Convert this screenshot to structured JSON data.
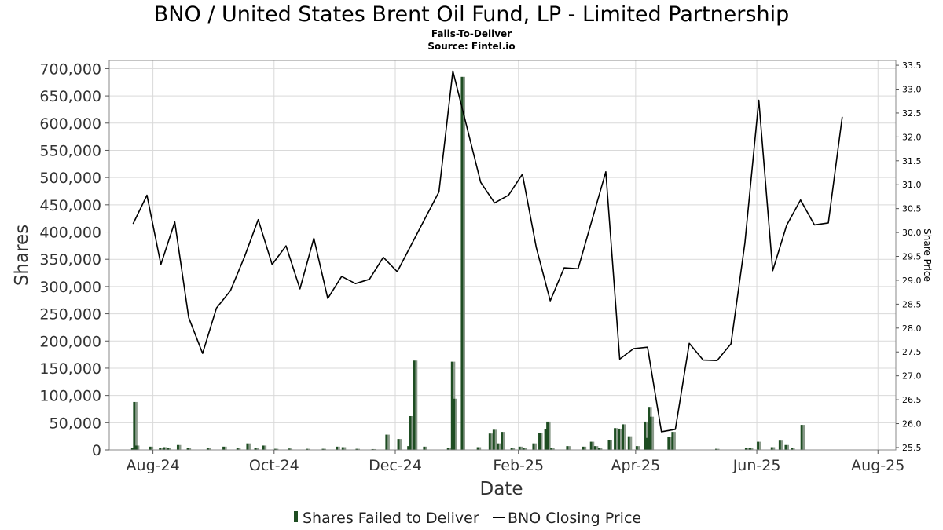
{
  "title": "BNO / United States Brent Oil Fund, LP - Limited Partnership",
  "subtitle": "Fails-To-Deliver",
  "source": "Source: Fintel.io",
  "colors": {
    "bar": "#1e4d22",
    "bar_shade": "#8a9a8a",
    "line": "#000000",
    "grid": "#d9d9d9"
  },
  "chart_data": {
    "type": "bar+line",
    "xlabel": "Date",
    "ylabel": "Shares",
    "y2label": "Share Price",
    "x_ticks": [
      {
        "label": "Aug-24",
        "date": "2024-08-01"
      },
      {
        "label": "Oct-24",
        "date": "2024-10-01"
      },
      {
        "label": "Dec-24",
        "date": "2024-12-01"
      },
      {
        "label": "Feb-25",
        "date": "2025-02-01"
      },
      {
        "label": "Apr-25",
        "date": "2025-04-01"
      },
      {
        "label": "Jun-25",
        "date": "2025-06-01"
      },
      {
        "label": "Aug-25",
        "date": "2025-08-01"
      }
    ],
    "xlim": [
      "2024-07-10",
      "2025-08-10"
    ],
    "ylim": [
      0,
      715000
    ],
    "y_ticks": [
      {
        "value": 0,
        "label": "0"
      },
      {
        "value": 50000,
        "label": "50,000"
      },
      {
        "value": 100000,
        "label": "100,000"
      },
      {
        "value": 150000,
        "label": "150,000"
      },
      {
        "value": 200000,
        "label": "200,000"
      },
      {
        "value": 250000,
        "label": "250,000"
      },
      {
        "value": 300000,
        "label": "300,000"
      },
      {
        "value": 350000,
        "label": "350,000"
      },
      {
        "value": 400000,
        "label": "400,000"
      },
      {
        "value": 450000,
        "label": "450,000"
      },
      {
        "value": 500000,
        "label": "500,000"
      },
      {
        "value": 550000,
        "label": "550,000"
      },
      {
        "value": 600000,
        "label": "600,000"
      },
      {
        "value": 650000,
        "label": "650,000"
      },
      {
        "value": 700000,
        "label": "700,000"
      }
    ],
    "y2lim": [
      25.45,
      33.6
    ],
    "y2_ticks": [
      {
        "value": 25.5,
        "label": "25.5"
      },
      {
        "value": 26.0,
        "label": "26.0"
      },
      {
        "value": 26.5,
        "label": "26.5"
      },
      {
        "value": 27.0,
        "label": "27.0"
      },
      {
        "value": 27.5,
        "label": "27.5"
      },
      {
        "value": 28.0,
        "label": "28.0"
      },
      {
        "value": 28.5,
        "label": "28.5"
      },
      {
        "value": 29.0,
        "label": "29.0"
      },
      {
        "value": 29.5,
        "label": "29.5"
      },
      {
        "value": 30.0,
        "label": "30.0"
      },
      {
        "value": 30.5,
        "label": "30.5"
      },
      {
        "value": 31.0,
        "label": "31.0"
      },
      {
        "value": 31.5,
        "label": "31.5"
      },
      {
        "value": 32.0,
        "label": "32.0"
      },
      {
        "value": 32.5,
        "label": "32.5"
      },
      {
        "value": 33.0,
        "label": "33.0"
      },
      {
        "value": 33.5,
        "label": "33.5"
      }
    ],
    "series": [
      {
        "name": "Shares Failed to Deliver",
        "type": "bar",
        "points": [
          {
            "date": "2024-07-22",
            "value": 3000
          },
          {
            "date": "2024-07-23",
            "value": 88000
          },
          {
            "date": "2024-07-24",
            "value": 8000
          },
          {
            "date": "2024-07-31",
            "value": 6000
          },
          {
            "date": "2024-08-05",
            "value": 4000
          },
          {
            "date": "2024-08-07",
            "value": 5000
          },
          {
            "date": "2024-08-09",
            "value": 3000
          },
          {
            "date": "2024-08-14",
            "value": 9000
          },
          {
            "date": "2024-08-19",
            "value": 4000
          },
          {
            "date": "2024-08-29",
            "value": 3000
          },
          {
            "date": "2024-09-06",
            "value": 6000
          },
          {
            "date": "2024-09-13",
            "value": 3000
          },
          {
            "date": "2024-09-18",
            "value": 12000
          },
          {
            "date": "2024-09-22",
            "value": 4000
          },
          {
            "date": "2024-09-26",
            "value": 8000
          },
          {
            "date": "2024-10-02",
            "value": 2000
          },
          {
            "date": "2024-10-09",
            "value": 2500
          },
          {
            "date": "2024-10-18",
            "value": 2000
          },
          {
            "date": "2024-10-26",
            "value": 2000
          },
          {
            "date": "2024-11-02",
            "value": 6000
          },
          {
            "date": "2024-11-05",
            "value": 5000
          },
          {
            "date": "2024-11-12",
            "value": 2000
          },
          {
            "date": "2024-11-20",
            "value": 1500
          },
          {
            "date": "2024-11-27",
            "value": 28000
          },
          {
            "date": "2024-12-03",
            "value": 20000
          },
          {
            "date": "2024-12-08",
            "value": 7000
          },
          {
            "date": "2024-12-09",
            "value": 62000
          },
          {
            "date": "2024-12-11",
            "value": 164000
          },
          {
            "date": "2024-12-16",
            "value": 6000
          },
          {
            "date": "2024-12-28",
            "value": 4000
          },
          {
            "date": "2024-12-30",
            "value": 162000
          },
          {
            "date": "2024-12-31",
            "value": 94000
          },
          {
            "date": "2025-01-04",
            "value": 685000
          },
          {
            "date": "2025-01-12",
            "value": 5000
          },
          {
            "date": "2025-01-18",
            "value": 30000
          },
          {
            "date": "2025-01-20",
            "value": 37000
          },
          {
            "date": "2025-01-22",
            "value": 12000
          },
          {
            "date": "2025-01-24",
            "value": 33000
          },
          {
            "date": "2025-01-29",
            "value": 3000
          },
          {
            "date": "2025-02-02",
            "value": 6000
          },
          {
            "date": "2025-02-04",
            "value": 4000
          },
          {
            "date": "2025-02-09",
            "value": 12000
          },
          {
            "date": "2025-02-12",
            "value": 31000
          },
          {
            "date": "2025-02-15",
            "value": 38000
          },
          {
            "date": "2025-02-16",
            "value": 52000
          },
          {
            "date": "2025-02-18",
            "value": 4000
          },
          {
            "date": "2025-02-26",
            "value": 7000
          },
          {
            "date": "2025-03-06",
            "value": 6000
          },
          {
            "date": "2025-03-10",
            "value": 15000
          },
          {
            "date": "2025-03-12",
            "value": 7000
          },
          {
            "date": "2025-03-14",
            "value": 3000
          },
          {
            "date": "2025-03-19",
            "value": 18000
          },
          {
            "date": "2025-03-22",
            "value": 40000
          },
          {
            "date": "2025-03-24",
            "value": 39000
          },
          {
            "date": "2025-03-26",
            "value": 47000
          },
          {
            "date": "2025-03-29",
            "value": 25000
          },
          {
            "date": "2025-04-02",
            "value": 7000
          },
          {
            "date": "2025-04-06",
            "value": 52000
          },
          {
            "date": "2025-04-07",
            "value": 22000
          },
          {
            "date": "2025-04-08",
            "value": 79000
          },
          {
            "date": "2025-04-09",
            "value": 61000
          },
          {
            "date": "2025-04-18",
            "value": 24000
          },
          {
            "date": "2025-04-20",
            "value": 33000
          },
          {
            "date": "2025-05-12",
            "value": 2000
          },
          {
            "date": "2025-05-27",
            "value": 3000
          },
          {
            "date": "2025-05-29",
            "value": 4000
          },
          {
            "date": "2025-06-02",
            "value": 15000
          },
          {
            "date": "2025-06-09",
            "value": 5000
          },
          {
            "date": "2025-06-13",
            "value": 17000
          },
          {
            "date": "2025-06-16",
            "value": 9000
          },
          {
            "date": "2025-06-19",
            "value": 4000
          },
          {
            "date": "2025-06-24",
            "value": 46000
          }
        ]
      },
      {
        "name": "BNO Closing Price",
        "type": "line",
        "axis": "right",
        "points": [
          {
            "date": "2024-07-22",
            "value": 30.18
          },
          {
            "date": "2024-07-29",
            "value": 30.78
          },
          {
            "date": "2024-08-05",
            "value": 29.33
          },
          {
            "date": "2024-08-12",
            "value": 30.22
          },
          {
            "date": "2024-08-19",
            "value": 28.22
          },
          {
            "date": "2024-08-26",
            "value": 27.47
          },
          {
            "date": "2024-09-02",
            "value": 28.42
          },
          {
            "date": "2024-09-09",
            "value": 28.78
          },
          {
            "date": "2024-09-16",
            "value": 29.48
          },
          {
            "date": "2024-09-23",
            "value": 30.27
          },
          {
            "date": "2024-09-30",
            "value": 29.33
          },
          {
            "date": "2024-10-07",
            "value": 29.72
          },
          {
            "date": "2024-10-14",
            "value": 28.82
          },
          {
            "date": "2024-10-21",
            "value": 29.88
          },
          {
            "date": "2024-10-28",
            "value": 28.62
          },
          {
            "date": "2024-11-04",
            "value": 29.08
          },
          {
            "date": "2024-11-11",
            "value": 28.93
          },
          {
            "date": "2024-11-18",
            "value": 29.02
          },
          {
            "date": "2024-11-25",
            "value": 29.48
          },
          {
            "date": "2024-12-02",
            "value": 29.18
          },
          {
            "date": "2024-12-23",
            "value": 30.85
          },
          {
            "date": "2024-12-30",
            "value": 33.38
          },
          {
            "date": "2025-01-13",
            "value": 31.05
          },
          {
            "date": "2025-01-20",
            "value": 30.62
          },
          {
            "date": "2025-01-27",
            "value": 30.78
          },
          {
            "date": "2025-02-03",
            "value": 31.22
          },
          {
            "date": "2025-02-10",
            "value": 29.68
          },
          {
            "date": "2025-02-17",
            "value": 28.57
          },
          {
            "date": "2025-02-24",
            "value": 29.26
          },
          {
            "date": "2025-03-03",
            "value": 29.24
          },
          {
            "date": "2025-03-17",
            "value": 31.27
          },
          {
            "date": "2025-03-24",
            "value": 27.35
          },
          {
            "date": "2025-03-31",
            "value": 27.57
          },
          {
            "date": "2025-04-07",
            "value": 27.6
          },
          {
            "date": "2025-04-14",
            "value": 25.83
          },
          {
            "date": "2025-04-21",
            "value": 25.88
          },
          {
            "date": "2025-04-28",
            "value": 27.68
          },
          {
            "date": "2025-05-05",
            "value": 27.33
          },
          {
            "date": "2025-05-12",
            "value": 27.32
          },
          {
            "date": "2025-05-19",
            "value": 27.67
          },
          {
            "date": "2025-05-26",
            "value": 29.78
          },
          {
            "date": "2025-06-02",
            "value": 32.77
          },
          {
            "date": "2025-06-09",
            "value": 29.2
          },
          {
            "date": "2025-06-16",
            "value": 30.15
          },
          {
            "date": "2025-06-23",
            "value": 30.68
          },
          {
            "date": "2025-06-30",
            "value": 30.16
          },
          {
            "date": "2025-07-07",
            "value": 30.2
          },
          {
            "date": "2025-07-14",
            "value": 32.42
          }
        ]
      }
    ]
  },
  "legend": {
    "bar_label": "Shares Failed to Deliver",
    "line_label": "BNO Closing Price"
  }
}
